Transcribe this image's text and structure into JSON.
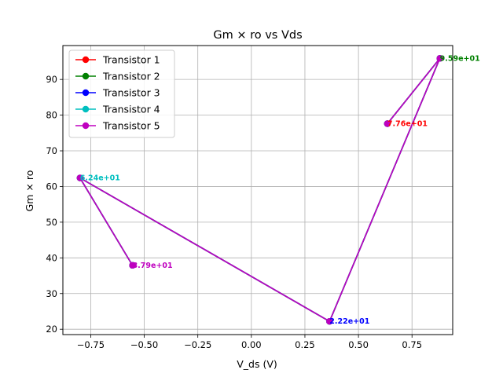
{
  "chart_data": {
    "type": "line",
    "title": "Gm × ro vs Vds",
    "xlabel": "V_ds (V)",
    "ylabel": "Gm × ro",
    "xlim": [
      -0.88,
      0.94
    ],
    "ylim": [
      18.5,
      99.5
    ],
    "xticks": [
      -0.75,
      -0.5,
      -0.25,
      0.0,
      0.25,
      0.5,
      0.75
    ],
    "xtick_labels": [
      "−0.75",
      "−0.50",
      "−0.25",
      "0.00",
      "0.25",
      "0.50",
      "0.75"
    ],
    "yticks": [
      20,
      30,
      40,
      50,
      60,
      70,
      80,
      90
    ],
    "ytick_labels": [
      "20",
      "30",
      "40",
      "50",
      "60",
      "70",
      "80",
      "90"
    ],
    "grid": true,
    "legend_position": "top-left",
    "x": [
      0.635,
      0.88,
      0.365,
      -0.8,
      -0.555
    ],
    "y": [
      77.6,
      95.9,
      22.2,
      62.4,
      37.9
    ],
    "series": [
      {
        "name": "Transistor 1",
        "color": "#ff0000"
      },
      {
        "name": "Transistor 2",
        "color": "#008000"
      },
      {
        "name": "Transistor 3",
        "color": "#0000ff"
      },
      {
        "name": "Transistor 4",
        "color": "#00bfbf"
      },
      {
        "name": "Transistor 5",
        "color": "#bf00bf"
      }
    ],
    "annotations": [
      {
        "text": "7.76e+01",
        "x": 0.635,
        "y": 77.6,
        "color": "#ff0000"
      },
      {
        "text": "9.59e+01",
        "x": 0.88,
        "y": 95.9,
        "color": "#008000"
      },
      {
        "text": "2.22e+01",
        "x": 0.365,
        "y": 22.2,
        "color": "#0000ff"
      },
      {
        "text": "6.24e+01",
        "x": -0.8,
        "y": 62.4,
        "color": "#00bfbf"
      },
      {
        "text": "3.79e+01",
        "x": -0.555,
        "y": 37.9,
        "color": "#bf00bf"
      }
    ]
  }
}
